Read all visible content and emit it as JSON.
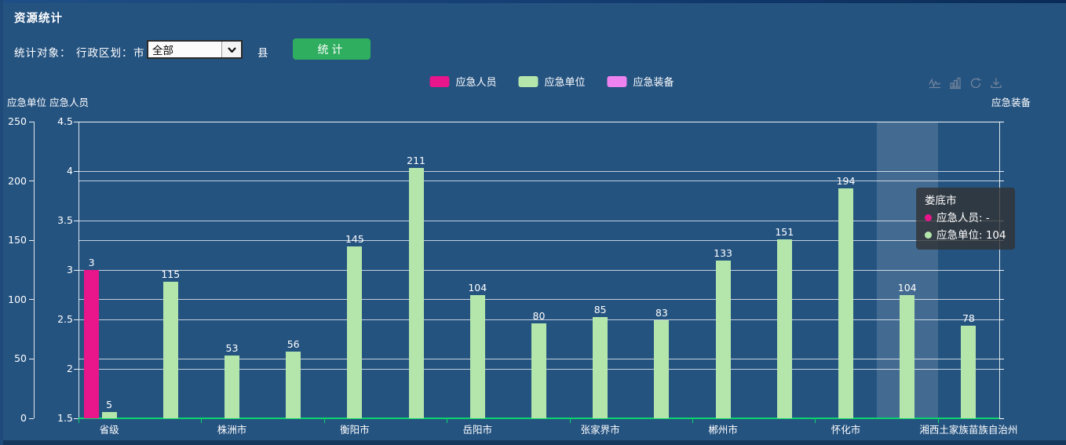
{
  "header": {
    "title": "资源统计"
  },
  "controls": {
    "stat_object_label": "统计对象：",
    "admin_division_label": "行政区划：",
    "city_label": "市",
    "city_select_value": "全部",
    "county_label": "县",
    "submit_label": "统计",
    "submit_color": "#2fae5f"
  },
  "legend": {
    "items": [
      {
        "label": "应急人员",
        "color": "#e8158b"
      },
      {
        "label": "应急单位",
        "color": "#b4e6ac"
      },
      {
        "label": "应急装备",
        "color": "#ee82ee"
      }
    ]
  },
  "toolbox": {
    "color": "#72849b",
    "icons": [
      "line-chart-icon",
      "bar-chart-icon",
      "restore-icon",
      "download-icon"
    ]
  },
  "chart_data": {
    "type": "bar",
    "categories": [
      "省级",
      "",
      "株洲市",
      "",
      "衡阳市",
      "",
      "岳阳市",
      "",
      "张家界市",
      "",
      "郴州市",
      "",
      "怀化市",
      "娄底市",
      "湘西土家族苗族自治州"
    ],
    "x_axis": {
      "label_interval": 2,
      "line_color": "#0bd36c"
    },
    "y_axes": [
      {
        "name": "应急单位",
        "min": 0,
        "max": 250,
        "tick_labels": [
          "0",
          "50",
          "100",
          "150",
          "200",
          "250"
        ],
        "position": "left_outer"
      },
      {
        "name": "应急人员",
        "min": 1.5,
        "max": 4.5,
        "tick_labels": [
          "1.5",
          "2",
          "2.5",
          "3",
          "3.5",
          "4",
          "4.5"
        ],
        "position": "left"
      },
      {
        "name": "应急装备",
        "min": null,
        "max": null,
        "tick_labels": [],
        "position": "right"
      }
    ],
    "series": [
      {
        "name": "应急人员",
        "color": "#e8158b",
        "y_axis": "应急人员",
        "values": [
          3,
          null,
          null,
          null,
          null,
          null,
          null,
          null,
          null,
          null,
          null,
          null,
          null,
          null,
          null
        ]
      },
      {
        "name": "应急单位",
        "color": "#b4e6ac",
        "y_axis": "应急单位",
        "values": [
          5,
          115,
          53,
          56,
          145,
          211,
          104,
          80,
          85,
          83,
          133,
          151,
          194,
          104,
          78
        ]
      },
      {
        "name": "应急装备",
        "color": "#ee82ee",
        "y_axis": "应急装备",
        "values": [
          null,
          null,
          null,
          null,
          null,
          null,
          null,
          null,
          null,
          null,
          null,
          null,
          null,
          null,
          null
        ]
      }
    ],
    "highlight_index": 13,
    "grid_color": "rgba(255,255,255,0.72)",
    "grid": true,
    "legend_position": "top-center"
  },
  "tooltip": {
    "title": "娄底市",
    "items": [
      {
        "label": "应急人员",
        "value": "-",
        "color": "#e8158b"
      },
      {
        "label": "应急单位",
        "value": "104",
        "color": "#b4e6ac"
      }
    ]
  }
}
